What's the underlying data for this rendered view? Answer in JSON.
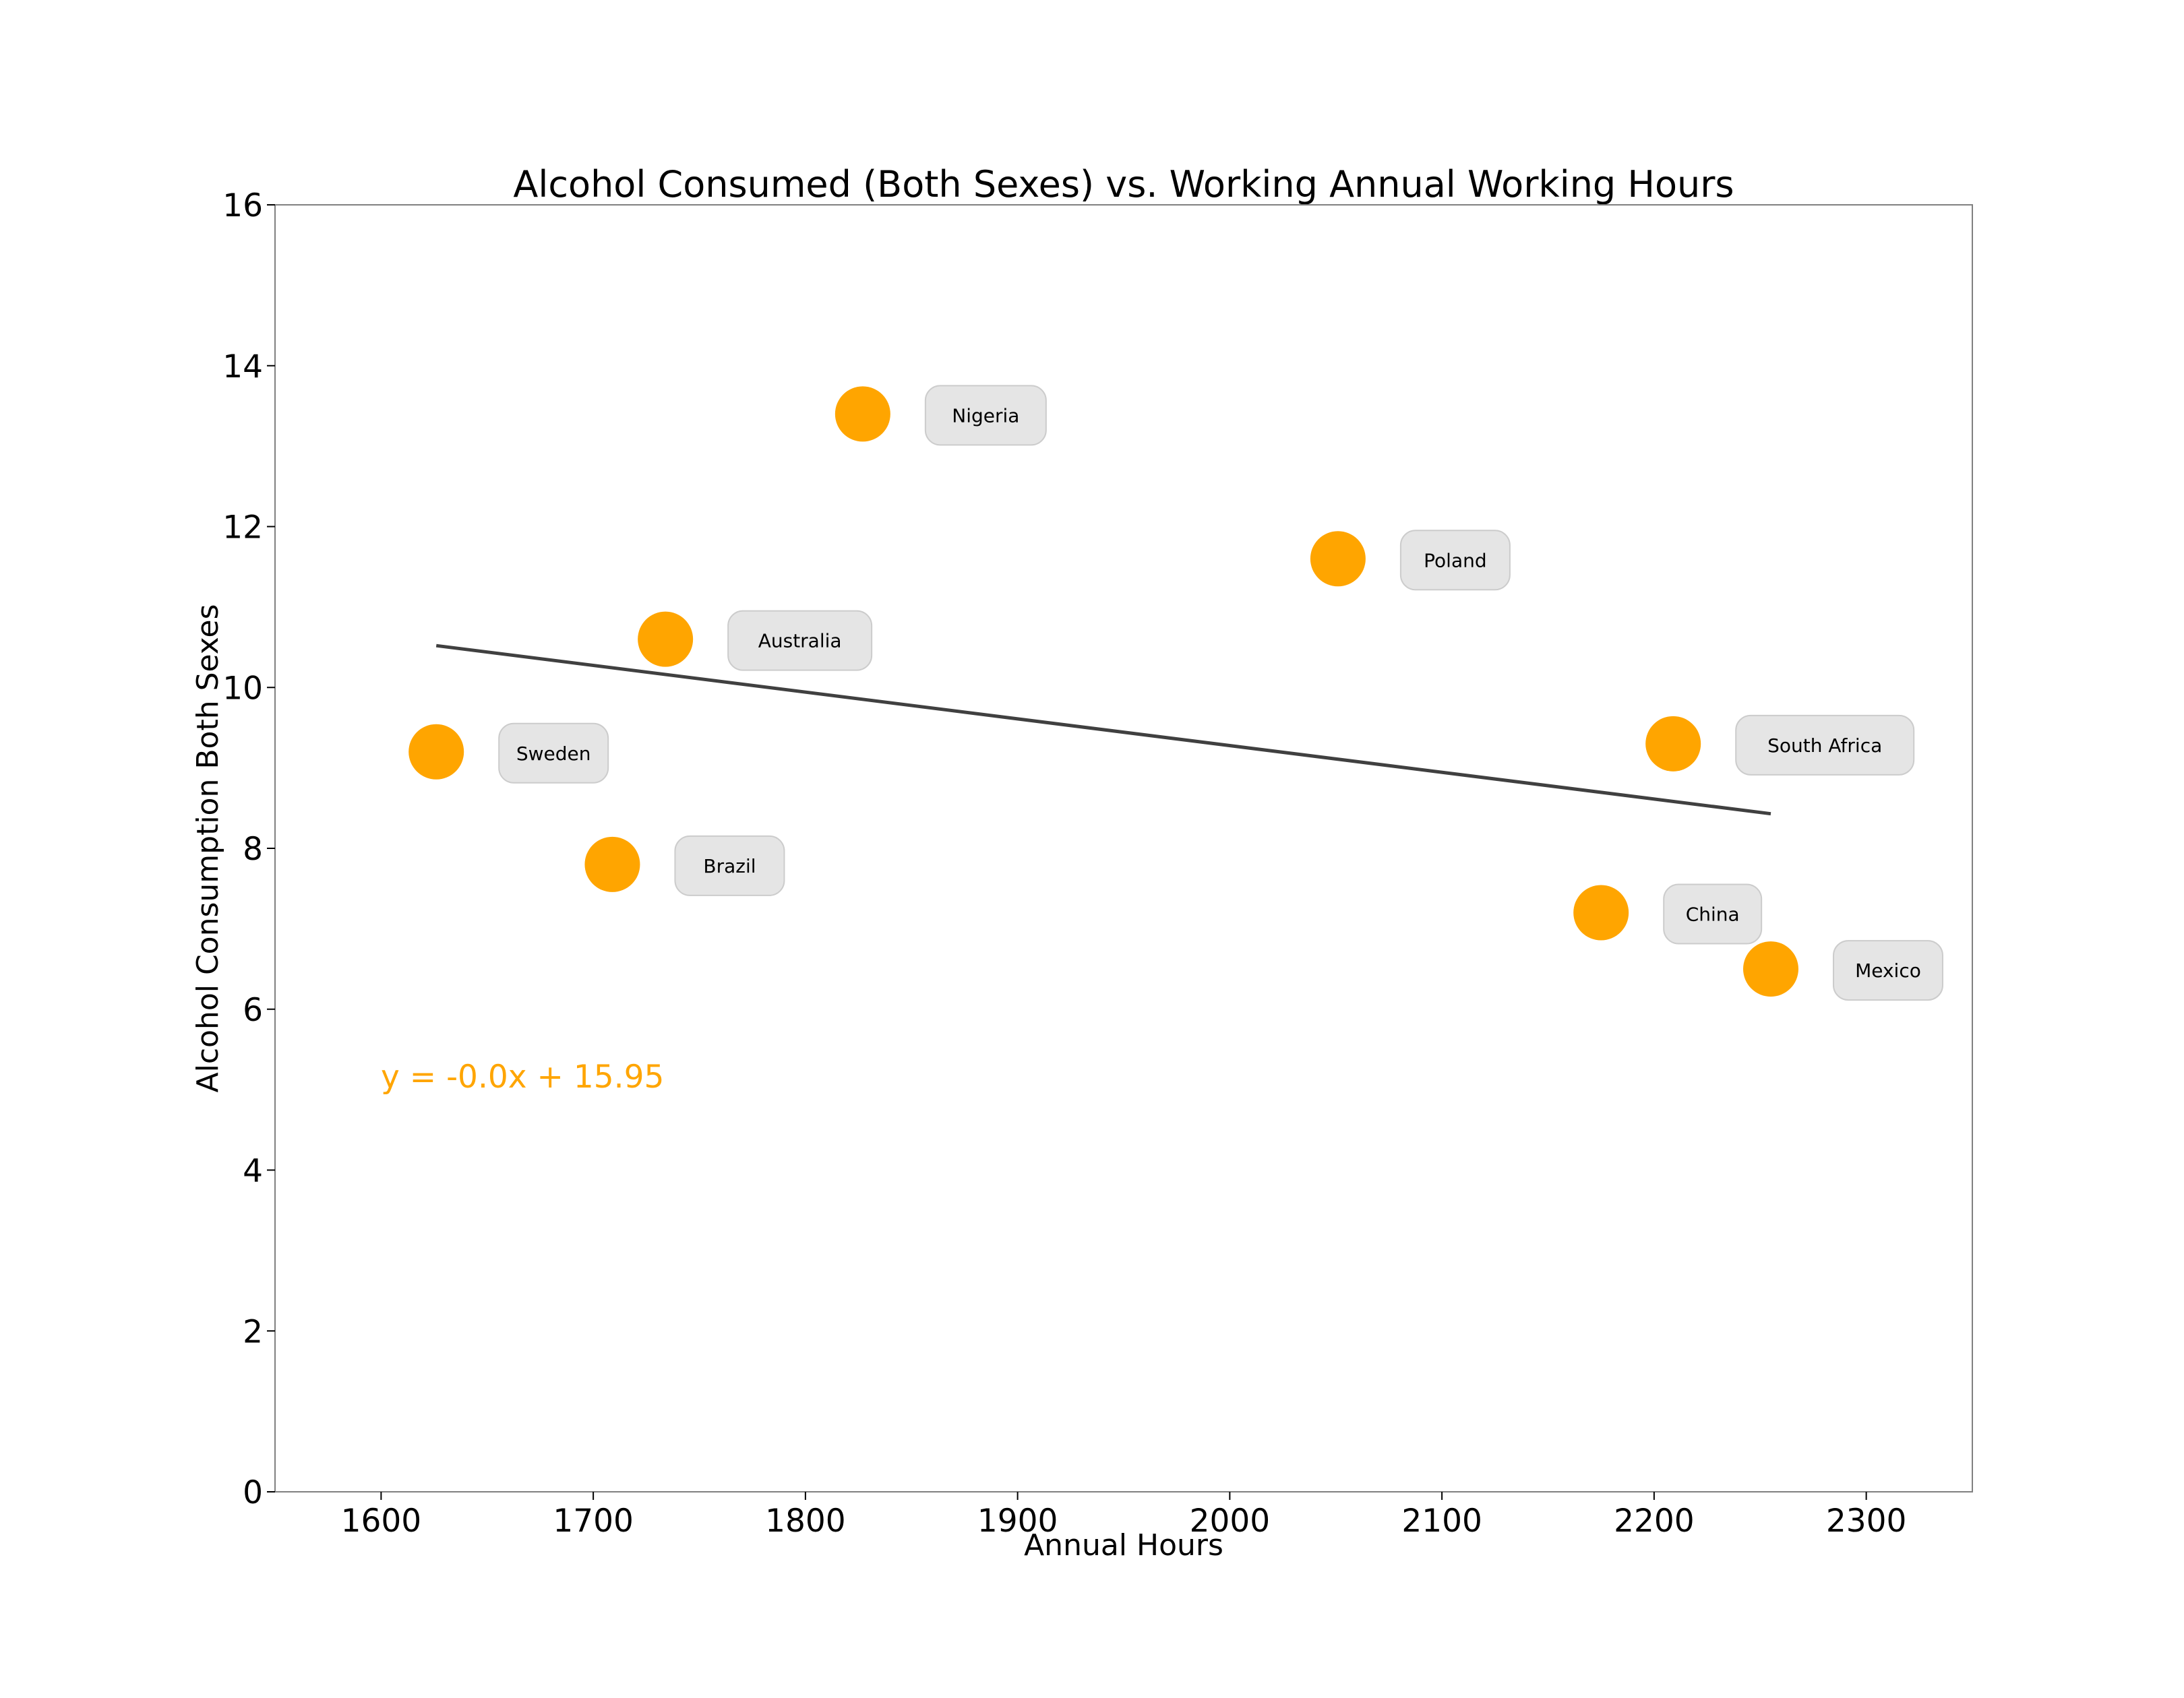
{
  "chart_data": {
    "type": "scatter",
    "title": "Alcohol Consumed (Both Sexes) vs. Working Annual Working Hours",
    "xlabel": "Annual Hours",
    "ylabel": "Alcohol Consumption Both Sexes",
    "xlim": [
      1550,
      2350
    ],
    "ylim": [
      0,
      16
    ],
    "xticks": [
      1600,
      1700,
      1800,
      1900,
      2000,
      2100,
      2200,
      2300
    ],
    "yticks": [
      0,
      2,
      4,
      6,
      8,
      10,
      12,
      14,
      16
    ],
    "grid": false,
    "legend": "none",
    "points": [
      {
        "label": "Sweden",
        "x": 1626,
        "y": 9.2
      },
      {
        "label": "Brazil",
        "x": 1709,
        "y": 7.8
      },
      {
        "label": "Australia",
        "x": 1734,
        "y": 10.6
      },
      {
        "label": "Nigeria",
        "x": 1827,
        "y": 13.4
      },
      {
        "label": "Poland",
        "x": 2051,
        "y": 11.6
      },
      {
        "label": "China",
        "x": 2175,
        "y": 7.2
      },
      {
        "label": "South Africa",
        "x": 2209,
        "y": 9.3
      },
      {
        "label": "Mexico",
        "x": 2255,
        "y": 6.5
      }
    ],
    "trendline": {
      "x": [
        1626,
        2255
      ],
      "y": [
        10.52,
        8.43
      ]
    },
    "equation_text": "y = -0.0x + 15.95",
    "colors": {
      "points": "#ffa500",
      "trendline": "#404040",
      "equation": "#ffa500",
      "label_box": "#e5e5e5",
      "label_box_border": "#cccccc"
    }
  }
}
